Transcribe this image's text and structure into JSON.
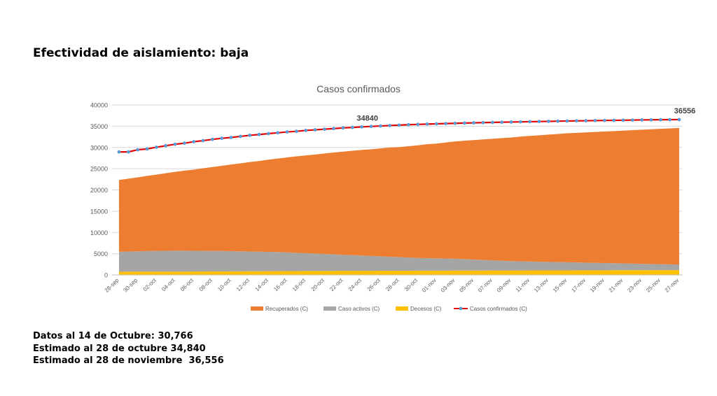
{
  "slide": {
    "title": "Efectividad de aislamiento: baja"
  },
  "notes": [
    "Datos al 14 de Octubre: 30,766",
    "Estimado al 28 de octubre 34,840",
    "Estimado al 28 de noviembre  36,556"
  ],
  "chart_data": {
    "type": "area",
    "title": "Casos confirmados",
    "xlabel": "",
    "ylabel": "",
    "ylim": [
      0,
      40000
    ],
    "yticks": [
      0,
      5000,
      10000,
      15000,
      20000,
      25000,
      30000,
      35000,
      40000
    ],
    "grid": true,
    "legend": "bottom",
    "x_tick_labels": [
      "28-sep",
      "30-sep",
      "02-oct",
      "04-oct",
      "06-oct",
      "08-oct",
      "10-oct",
      "12-oct",
      "14-oct",
      "16-oct",
      "18-oct",
      "20-oct",
      "22-oct",
      "24-oct",
      "26-oct",
      "28-oct",
      "30-oct",
      "01-nov",
      "03-nov",
      "05-nov",
      "07-nov",
      "09-nov",
      "11-nov",
      "13-nov",
      "15-nov",
      "17-nov",
      "19-nov",
      "21-nov",
      "23-nov",
      "25-nov",
      "27-nov"
    ],
    "series": [
      {
        "name": "Recuperados (C)",
        "kind": "area",
        "color": "#ED7D31",
        "values": [
          16900,
          17150,
          17400,
          17700,
          17950,
          18250,
          18550,
          18850,
          19100,
          19450,
          19750,
          20050,
          20400,
          20700,
          21050,
          21350,
          21700,
          22000,
          22350,
          22700,
          23000,
          23300,
          23650,
          23950,
          24250,
          24550,
          24850,
          25100,
          25400,
          25700,
          25900,
          26200,
          26500,
          26800,
          27000,
          27300,
          27600,
          27850,
          28100,
          28350,
          28600,
          28850,
          29100,
          29350,
          29550,
          29750,
          29950,
          30150,
          30350,
          30500,
          30650,
          30800,
          30950,
          31100,
          31250,
          31400,
          31550,
          31700,
          31850,
          32000,
          32150
        ]
      },
      {
        "name": "Caso activos (C)",
        "kind": "area",
        "color": "#A5A5A5",
        "values": [
          4700,
          4750,
          4800,
          4850,
          4880,
          4900,
          4920,
          4900,
          4880,
          4850,
          4820,
          4800,
          4750,
          4700,
          4650,
          4600,
          4550,
          4500,
          4400,
          4300,
          4200,
          4100,
          4000,
          3900,
          3800,
          3700,
          3600,
          3500,
          3400,
          3300,
          3200,
          3100,
          3000,
          2950,
          2900,
          2850,
          2800,
          2700,
          2600,
          2500,
          2400,
          2300,
          2200,
          2150,
          2100,
          2050,
          2000,
          1950,
          1900,
          1850,
          1800,
          1750,
          1700,
          1650,
          1600,
          1550,
          1500,
          1450,
          1400,
          1350,
          1300
        ]
      },
      {
        "name": "Decesos (C)",
        "kind": "area",
        "color": "#FFC000",
        "values": [
          750,
          755,
          760,
          765,
          770,
          775,
          780,
          790,
          800,
          810,
          820,
          830,
          840,
          850,
          860,
          870,
          880,
          890,
          900,
          910,
          920,
          930,
          940,
          950,
          960,
          965,
          970,
          975,
          980,
          985,
          990,
          995,
          1000,
          1005,
          1010,
          1015,
          1020,
          1025,
          1030,
          1035,
          1040,
          1045,
          1050,
          1055,
          1060,
          1065,
          1070,
          1075,
          1080,
          1085,
          1090,
          1095,
          1100,
          1105,
          1110,
          1115,
          1120,
          1125,
          1130,
          1135,
          1140
        ]
      },
      {
        "name": "Casos confirmados (C)",
        "kind": "line",
        "color": "#E00000",
        "marker_color": "#5B9BD5",
        "values": [
          28950,
          28950,
          29450,
          29650,
          30050,
          30400,
          30750,
          31000,
          31350,
          31600,
          31900,
          32150,
          32350,
          32600,
          32850,
          33050,
          33250,
          33450,
          33650,
          33800,
          34000,
          34150,
          34300,
          34450,
          34600,
          34700,
          34840,
          34950,
          35050,
          35150,
          35250,
          35350,
          35420,
          35500,
          35560,
          35620,
          35680,
          35740,
          35790,
          35840,
          35890,
          35940,
          35980,
          36020,
          36060,
          36100,
          36140,
          36180,
          36220,
          36260,
          36290,
          36320,
          36350,
          36380,
          36410,
          36440,
          36470,
          36500,
          36520,
          36540,
          36556
        ]
      }
    ],
    "annotations": [
      {
        "label": "34840",
        "index": 26
      },
      {
        "label": "36556",
        "index": 60
      }
    ]
  }
}
